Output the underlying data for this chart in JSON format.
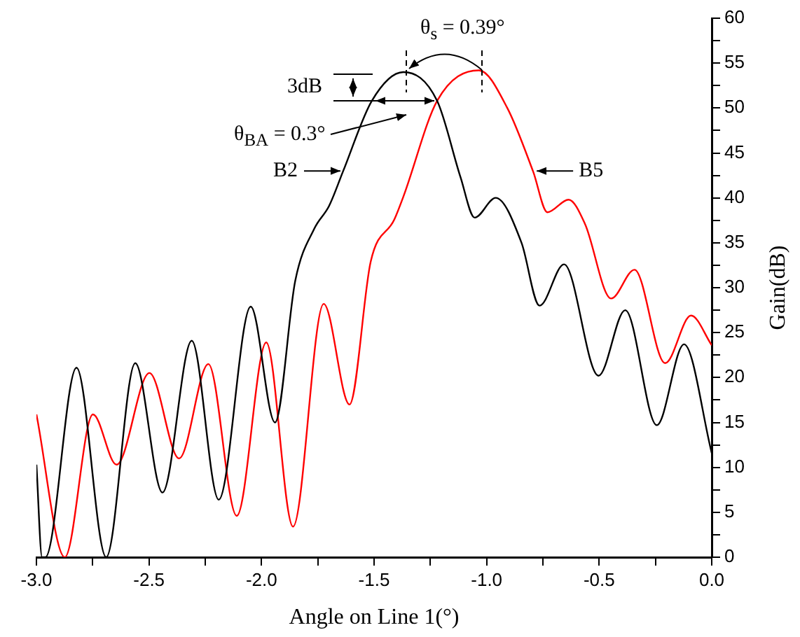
{
  "chart_data": {
    "type": "line",
    "xlabel": "Angle on Line 1(°)",
    "ylabel": "Gain(dB)",
    "xlim": [
      -3.0,
      0.0
    ],
    "xticks": [
      {
        "value": -3,
        "label": "-3.0"
      },
      {
        "value": -2.75,
        "label": null
      },
      {
        "value": -2.5,
        "label": "-2.5"
      },
      {
        "value": -2.25,
        "label": null
      },
      {
        "value": -2,
        "label": "-2.0"
      },
      {
        "value": -1.75,
        "label": null
      },
      {
        "value": -1.5,
        "label": "-1.5"
      },
      {
        "value": -1.25,
        "label": null
      },
      {
        "value": -1,
        "label": "-1.0"
      },
      {
        "value": -0.75,
        "label": null
      },
      {
        "value": -0.5,
        "label": "-0.5"
      },
      {
        "value": -0.25,
        "label": null
      },
      {
        "value": 0,
        "label": "0.0"
      }
    ],
    "ylim": [
      0,
      60
    ],
    "yticks": [
      0,
      {
        "value": 2.5,
        "label": null
      },
      5,
      {
        "value": 7.5,
        "label": null
      },
      10,
      {
        "value": 12.5,
        "label": null
      },
      15,
      {
        "value": 17.5,
        "label": null
      },
      20,
      {
        "value": 22.5,
        "label": null
      },
      25,
      {
        "value": 27.5,
        "label": null
      },
      30,
      {
        "value": 32.5,
        "label": null
      },
      35,
      {
        "value": 37.5,
        "label": null
      },
      40,
      {
        "value": 42.5,
        "label": null
      },
      45,
      {
        "value": 47.5,
        "label": null
      },
      50,
      {
        "value": 52.5,
        "label": null
      },
      55,
      {
        "value": 57.5,
        "label": null
      },
      60
    ],
    "series": [
      {
        "color": "#000000",
        "x": [
          -3.0,
          -2.975,
          -2.96,
          -2.822,
          -2.69,
          -2.561,
          -2.44,
          -2.31,
          -2.19,
          -2.048,
          -1.94,
          -1.85,
          -1.765,
          -1.7,
          -1.637,
          -1.51,
          -1.37,
          -1.22,
          -1.116,
          -1.053,
          -0.96,
          -0.845,
          -0.765,
          -0.656,
          -0.503,
          -0.384,
          -0.244,
          -0.123,
          0.0
        ],
        "values": [
          10.3,
          0,
          0,
          21.1,
          0,
          21.6,
          7.2,
          24.1,
          6.4,
          27.9,
          15.0,
          30.8,
          36.6,
          39.1,
          43.0,
          50.8,
          54.0,
          50.8,
          42.3,
          37.8,
          40.0,
          35.0,
          28.0,
          32.6,
          20.2,
          27.5,
          14.7,
          23.7,
          11.6
        ]
      },
      {
        "color": "#ff0000",
        "x": [
          -3.0,
          -2.874,
          -2.749,
          -2.644,
          -2.498,
          -2.366,
          -2.236,
          -2.11,
          -1.979,
          -1.86,
          -1.724,
          -1.609,
          -1.515,
          -1.41,
          -1.369,
          -1.22,
          -1.034,
          -0.908,
          -0.793,
          -0.73,
          -0.636,
          -0.563,
          -0.447,
          -0.343,
          -0.207,
          -0.092,
          0.0
        ],
        "values": [
          15.9,
          0,
          15.9,
          10.3,
          20.5,
          11.0,
          21.5,
          4.6,
          23.9,
          3.4,
          28.2,
          17.0,
          32.9,
          37.6,
          40.2,
          50.8,
          54.2,
          50.0,
          42.9,
          38.4,
          39.8,
          37.1,
          28.8,
          32.0,
          21.6,
          26.9,
          23.6
        ]
      }
    ],
    "annotations": [
      "θ$_{s}$ = 0.39°",
      "3dB",
      "θ$_{BA}$ = 0.3°",
      {
        "text": "B2",
        "x": -1.637,
        "y": 43
      },
      {
        "text": "B5",
        "x": -0.79,
        "y": 43
      }
    ]
  }
}
